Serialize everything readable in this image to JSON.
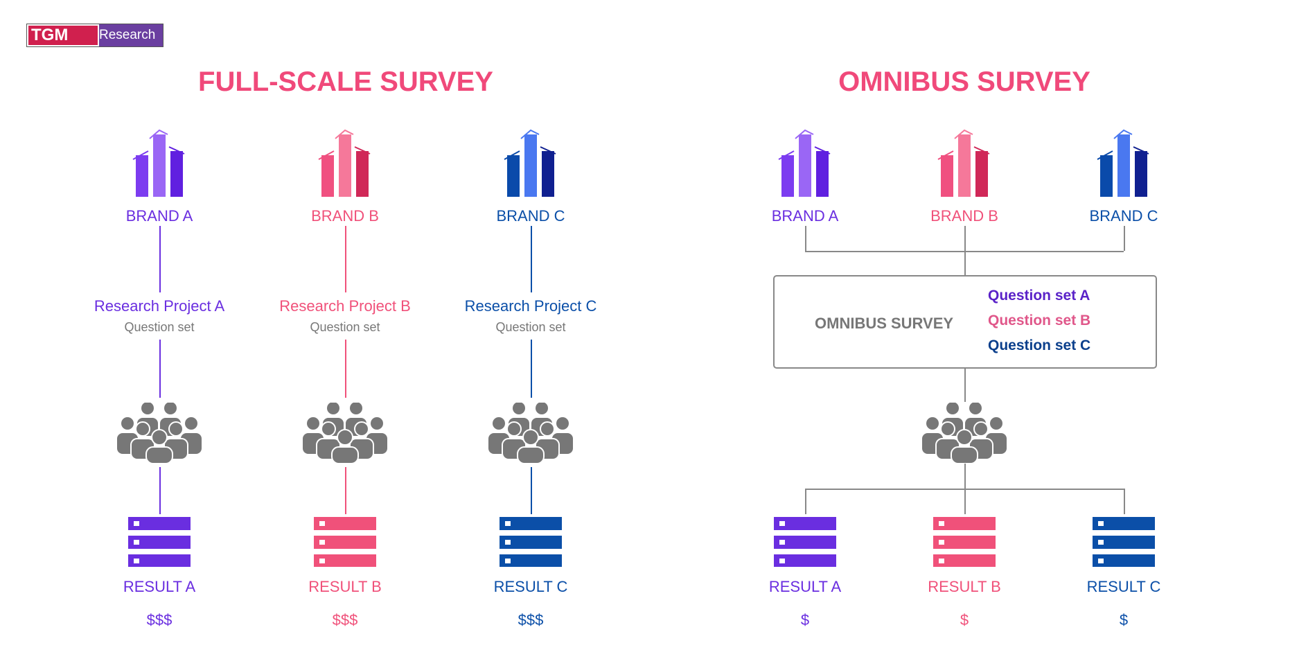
{
  "logo": {
    "part1": "TGM",
    "part2": "Research"
  },
  "colors": {
    "a": "#6a2ee0",
    "b": "#f0517a",
    "c": "#0b4fa8",
    "title": "#f0497a",
    "gray": "#777777"
  },
  "full_scale": {
    "title": "FULL-SCALE SURVEY",
    "columns": [
      {
        "brand": "BRAND A",
        "project": "Research Project A",
        "question": "Question set",
        "result": "RESULT A",
        "cost": "$$$"
      },
      {
        "brand": "BRAND B",
        "project": "Research Project B",
        "question": "Question set",
        "result": "RESULT B",
        "cost": "$$$"
      },
      {
        "brand": "BRAND C",
        "project": "Research Project C",
        "question": "Question set",
        "result": "RESULT C",
        "cost": "$$$"
      }
    ]
  },
  "omnibus": {
    "title": "OMNIBUS SURVEY",
    "brands": [
      "BRAND A",
      "BRAND B",
      "BRAND C"
    ],
    "box_title": "OMNIBUS SURVEY",
    "question_sets": [
      "Question set A",
      "Question set B",
      "Question set C"
    ],
    "results": [
      {
        "result": "RESULT A",
        "cost": "$"
      },
      {
        "result": "RESULT B",
        "cost": "$"
      },
      {
        "result": "RESULT C",
        "cost": "$"
      }
    ]
  }
}
